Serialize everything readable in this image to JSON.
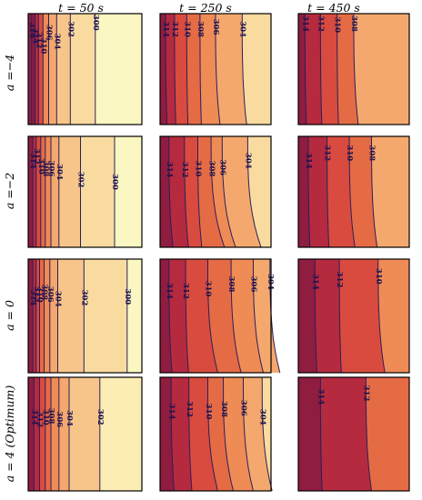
{
  "figure": {
    "column_titles": [
      "t = 50 s",
      "t = 250 s",
      "t = 450 s"
    ],
    "row_titles": [
      "a =−4",
      "a =−2",
      "a = 0",
      "a = 4 (Optimum)"
    ],
    "colors": {
      "levels": [
        "#fbf7c2",
        "#fbedb3",
        "#f9dba0",
        "#f7c58a",
        "#f4a86d",
        "#ef8b55",
        "#e56b45",
        "#d94b3e",
        "#b52a3e",
        "#8e1d3f"
      ],
      "contour_line": "#2a1f5c",
      "label_text": "#1a1050",
      "frame": "#000000"
    },
    "panels": [
      [
        {
          "labels": [
            "316",
            "314",
            "312",
            "310",
            "306",
            "304",
            "302",
            "300"
          ]
        },
        {
          "labels": [
            "314",
            "312",
            "310",
            "308",
            "306",
            "304"
          ]
        },
        {
          "labels": [
            "314",
            "312",
            "310",
            "308"
          ]
        }
      ],
      [
        {
          "labels": [
            "314",
            "312",
            "310",
            "308",
            "306",
            "304",
            "302",
            "300"
          ]
        },
        {
          "labels": [
            "314",
            "312",
            "310",
            "308",
            "306",
            "304"
          ]
        },
        {
          "labels": [
            "314",
            "312",
            "310",
            "308"
          ]
        }
      ],
      [
        {
          "labels": [
            "314",
            "312",
            "310",
            "308",
            "306",
            "304",
            "302",
            "300"
          ]
        },
        {
          "labels": [
            "314",
            "312",
            "310",
            "308",
            "306",
            "304"
          ]
        },
        {
          "labels": [
            "314",
            "312",
            "310"
          ]
        }
      ],
      [
        {
          "labels": [
            "314",
            "312",
            "310",
            "308",
            "306",
            "304",
            "302"
          ]
        },
        {
          "labels": [
            "314",
            "312",
            "310",
            "308",
            "306",
            "304"
          ]
        },
        {
          "labels": [
            "314",
            "312"
          ]
        }
      ]
    ]
  }
}
